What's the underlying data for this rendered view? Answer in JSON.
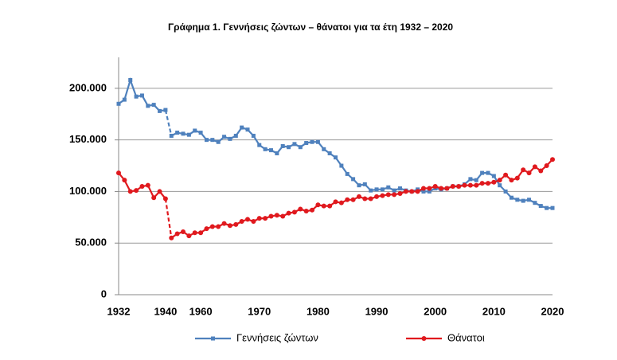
{
  "chart_data": {
    "type": "line",
    "title": "Γράφημα 1.  Γεννήσεις ζώντων – θάνατοι για τα έτη 1932 – 2020",
    "categories": [
      "1932",
      null,
      null,
      null,
      null,
      null,
      null,
      null,
      "1940",
      null,
      null,
      null,
      null,
      null,
      "1960",
      null,
      null,
      null,
      null,
      null,
      null,
      null,
      null,
      null,
      "1970",
      null,
      null,
      null,
      null,
      null,
      null,
      null,
      null,
      null,
      "1980",
      null,
      null,
      null,
      null,
      null,
      null,
      null,
      null,
      null,
      "1990",
      null,
      null,
      null,
      null,
      null,
      null,
      null,
      null,
      null,
      "2000",
      null,
      null,
      null,
      null,
      null,
      null,
      null,
      null,
      null,
      "2010",
      null,
      null,
      null,
      null,
      null,
      null,
      null,
      null,
      null,
      "2020"
    ],
    "dashed_after_index": 8,
    "series": [
      {
        "name": "Γεννήσεις ζώντων",
        "color": "#4f81bd",
        "marker": "square",
        "values": [
          185000,
          189000,
          208000,
          192000,
          193000,
          183000,
          184000,
          178000,
          179000,
          154000,
          157000,
          156000,
          155000,
          159000,
          157000,
          150000,
          150000,
          148000,
          153000,
          151000,
          154000,
          162000,
          160000,
          154000,
          145000,
          141000,
          140000,
          137000,
          144000,
          143000,
          146000,
          143000,
          147000,
          148000,
          148000,
          141000,
          137000,
          133000,
          125000,
          117000,
          112000,
          106000,
          107000,
          101000,
          102000,
          102000,
          104000,
          101000,
          103000,
          101000,
          100000,
          102000,
          100000,
          100000,
          103000,
          102000,
          103000,
          105000,
          105000,
          107000,
          112000,
          111000,
          118000,
          118000,
          115000,
          106000,
          100000,
          94000,
          92000,
          91000,
          92000,
          89000,
          86000,
          84000,
          84000
        ]
      },
      {
        "name": "Θάνατοι",
        "color": "#e0191e",
        "marker": "circle",
        "values": [
          118000,
          111000,
          100000,
          101000,
          105000,
          106000,
          94000,
          100000,
          93000,
          55000,
          59000,
          61000,
          57000,
          60000,
          60000,
          64000,
          66000,
          66000,
          69000,
          67000,
          68000,
          71000,
          73000,
          71000,
          74000,
          74000,
          76000,
          77000,
          76000,
          79000,
          80000,
          83000,
          81000,
          82000,
          87000,
          86000,
          86000,
          90000,
          89000,
          92000,
          92000,
          95000,
          93000,
          93000,
          95000,
          96000,
          97000,
          97000,
          98000,
          100000,
          100000,
          100000,
          103000,
          103000,
          105000,
          103000,
          103000,
          105000,
          105000,
          106000,
          106000,
          106000,
          108000,
          108000,
          109000,
          111000,
          116000,
          111000,
          113000,
          121000,
          118000,
          124000,
          120000,
          125000,
          131000
        ]
      }
    ],
    "ylim": [
      0,
      230000
    ],
    "yticks": [
      0,
      {
        "value": 50000,
        "label": "50.000"
      },
      {
        "value": 100000,
        "label": "100.000"
      },
      {
        "value": 150000,
        "label": "150.000"
      },
      {
        "value": 200000,
        "label": "200.000"
      }
    ],
    "grid": true,
    "legend": "bottom"
  }
}
